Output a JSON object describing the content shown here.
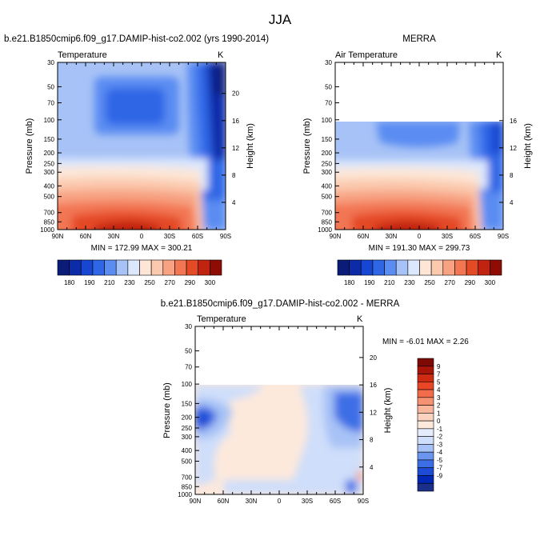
{
  "page_title": "JJA",
  "colors": {
    "diverging": [
      "#1a2f8a",
      "#0028b4",
      "#1e4bd6",
      "#3c6ee6",
      "#6b96f0",
      "#a7c2f6",
      "#cfdefa",
      "#e4ecfc",
      "#fde9dc",
      "#fbd3c0",
      "#f8b79c",
      "#f59272",
      "#f26b4a",
      "#e94628",
      "#cf2a12",
      "#a81508",
      "#7d0a04"
    ],
    "model_levels_colors": [
      "#0a1c78",
      "#0b2ba8",
      "#1646d2",
      "#2e66e6",
      "#5a8cf2",
      "#a7c2f6",
      "#dbe7fc",
      "#fde6d6",
      "#fbc9ae",
      "#f7a282",
      "#f27652",
      "#e44a26",
      "#c02410",
      "#8e0c03"
    ]
  },
  "chart_data": [
    {
      "id": "model",
      "type": "heatmap",
      "title": "b.e21.B1850cmip6.f09_g17.DAMIP-hist-co2.002 (yrs 1990-2014)",
      "left_label": "Temperature",
      "units": "K",
      "ylabel": "Pressure (mb)",
      "ylabel_right": "Height (km)",
      "x_ticks": [
        "90N",
        "60N",
        "30N",
        "0",
        "30S",
        "60S",
        "90S"
      ],
      "y_ticks": [
        "30",
        "50",
        "70",
        "100",
        "150",
        "200",
        "250",
        "300",
        "400",
        "500",
        "700",
        "850",
        "1000"
      ],
      "y_right_ticks": [
        "20",
        "16",
        "12",
        "8",
        "4"
      ],
      "stats": "MIN = 172.99   MAX = 300.21",
      "colorbar_labels": [
        "180",
        "190",
        "210",
        "230",
        "250",
        "270",
        "290",
        "300"
      ],
      "data_top_mb": 30
    },
    {
      "id": "obs",
      "type": "heatmap",
      "title": "MERRA",
      "left_label": "Air Temperature",
      "units": "K",
      "ylabel": "Pressure (mb)",
      "ylabel_right": "Height (km)",
      "x_ticks": [
        "90N",
        "60N",
        "30N",
        "0",
        "30S",
        "60S",
        "90S"
      ],
      "y_ticks": [
        "30",
        "50",
        "70",
        "100",
        "150",
        "200",
        "250",
        "300",
        "400",
        "500",
        "700",
        "850",
        "1000"
      ],
      "y_right_ticks": [
        "16",
        "12",
        "8",
        "4"
      ],
      "stats": "MIN = 191.30   MAX = 299.73",
      "colorbar_labels": [
        "180",
        "190",
        "210",
        "230",
        "250",
        "270",
        "290",
        "300"
      ],
      "data_top_mb": 100
    },
    {
      "id": "diff",
      "type": "heatmap",
      "title": "b.e21.B1850cmip6.f09_g17.DAMIP-hist-co2.002 - MERRA",
      "left_label": "Temperature",
      "units": "K",
      "ylabel": "Pressure (mb)",
      "ylabel_right": "Height (km)",
      "x_ticks": [
        "90N",
        "60N",
        "30N",
        "0",
        "30S",
        "60S",
        "90S"
      ],
      "y_ticks": [
        "30",
        "50",
        "70",
        "100",
        "150",
        "200",
        "250",
        "300",
        "400",
        "500",
        "700",
        "850",
        "1000"
      ],
      "y_right_ticks": [
        "20",
        "16",
        "12",
        "8",
        "4"
      ],
      "stats": "MIN = -6.01   MAX =  2.26",
      "colorbar_labels": [
        "9",
        "7",
        "5",
        "4",
        "3",
        "2",
        "1",
        "0",
        "-1",
        "-2",
        "-3",
        "-4",
        "-5",
        "-7",
        "-9"
      ],
      "data_top_mb": 100
    }
  ]
}
